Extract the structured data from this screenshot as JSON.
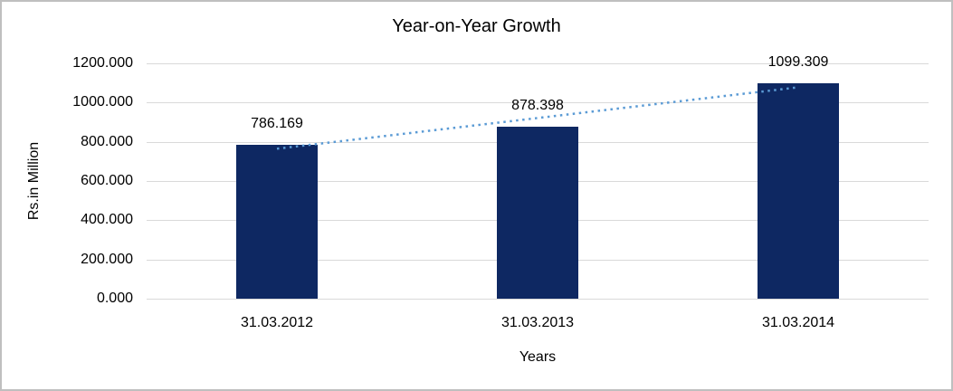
{
  "window": {
    "background_color": "#ffffff",
    "border_color": "#bfbfbf"
  },
  "chart_data": {
    "type": "bar",
    "title": "Year-on-Year Growth",
    "xlabel": "Years",
    "ylabel": "Rs.in Million",
    "categories": [
      "31.03.2012",
      "31.03.2013",
      "31.03.2014"
    ],
    "values": [
      786.169,
      878.398,
      1099.309
    ],
    "data_labels": [
      "786.169",
      "878.398",
      "1099.309"
    ],
    "ylim": [
      0,
      1200
    ],
    "ytick_interval": 200,
    "ytick_labels": [
      "0.000",
      "200.000",
      "400.000",
      "600.000",
      "800.000",
      "1000.000",
      "1200.000"
    ],
    "grid": "horizontal",
    "legend": "none",
    "bar_color": "#0e2862",
    "gridline_color": "#d9d9d9",
    "text_color": "#000000",
    "trendline": {
      "type": "linear",
      "style": "dotted",
      "color": "#5b9bd5"
    }
  }
}
